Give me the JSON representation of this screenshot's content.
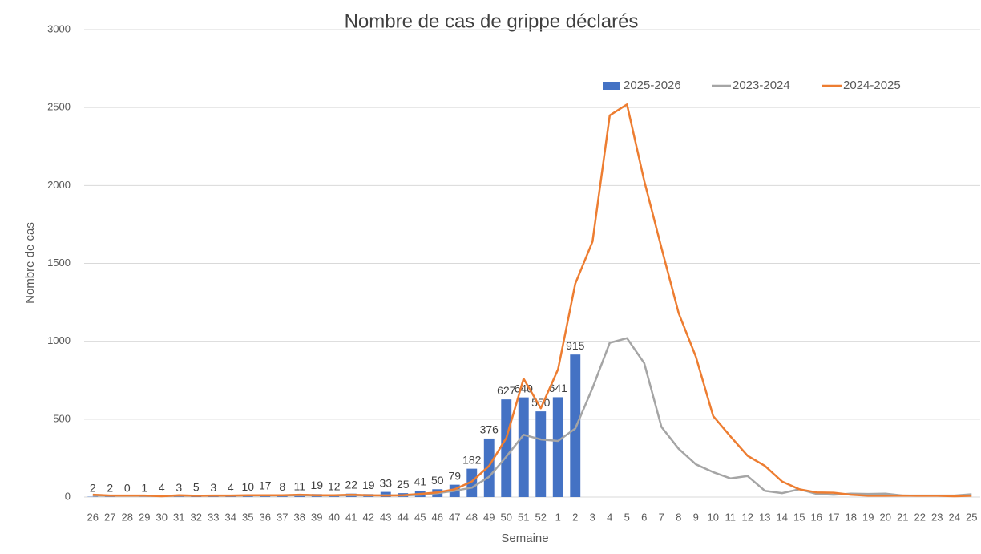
{
  "chart_data": {
    "type": "bar_line",
    "title": "Nombre de cas de grippe déclarés",
    "x_label": "Semaine",
    "y_label": "Nombre de cas",
    "categories": [
      "26",
      "27",
      "28",
      "29",
      "30",
      "31",
      "32",
      "33",
      "34",
      "35",
      "36",
      "37",
      "38",
      "39",
      "40",
      "41",
      "42",
      "43",
      "44",
      "45",
      "46",
      "47",
      "48",
      "49",
      "50",
      "51",
      "52",
      "1",
      "2",
      "3",
      "4",
      "5",
      "6",
      "7",
      "8",
      "9",
      "10",
      "11",
      "12",
      "13",
      "14",
      "15",
      "16",
      "17",
      "18",
      "19",
      "20",
      "21",
      "22",
      "23",
      "24",
      "25"
    ],
    "series": [
      {
        "name": "2025-2026",
        "type": "bar",
        "color": "#4472c4",
        "values": [
          2,
          2,
          0,
          1,
          4,
          3,
          5,
          3,
          4,
          10,
          17,
          8,
          11,
          19,
          12,
          22,
          19,
          33,
          25,
          41,
          50,
          79,
          182,
          376,
          627,
          640,
          550,
          641,
          915,
          null,
          null,
          null,
          null,
          null,
          null,
          null,
          null,
          null,
          null,
          null,
          null,
          null,
          null,
          null,
          null,
          null,
          null,
          null,
          null,
          null,
          null,
          null
        ]
      },
      {
        "name": "2023-2024",
        "type": "line",
        "color": "#a5a5a5",
        "values": [
          10,
          8,
          8,
          8,
          6,
          8,
          8,
          8,
          8,
          10,
          10,
          10,
          12,
          10,
          10,
          12,
          10,
          12,
          10,
          15,
          25,
          40,
          60,
          130,
          260,
          400,
          370,
          360,
          440,
          700,
          990,
          1020,
          860,
          450,
          310,
          210,
          160,
          120,
          135,
          40,
          25,
          50,
          20,
          15,
          22,
          20,
          22,
          10,
          10,
          10,
          10,
          18
        ]
      },
      {
        "name": "2024-2025",
        "type": "line",
        "color": "#ed7d31",
        "values": [
          15,
          10,
          10,
          10,
          5,
          12,
          8,
          10,
          10,
          12,
          12,
          12,
          15,
          12,
          12,
          15,
          12,
          10,
          12,
          20,
          30,
          50,
          100,
          200,
          380,
          760,
          570,
          820,
          1370,
          1640,
          2450,
          2520,
          2030,
          1600,
          1180,
          900,
          520,
          390,
          265,
          200,
          100,
          50,
          30,
          28,
          15,
          8,
          8,
          10,
          8,
          8,
          5,
          8
        ]
      }
    ],
    "ylim": [
      0,
      3000
    ],
    "yticks": [
      0,
      500,
      1000,
      1500,
      2000,
      2500,
      3000
    ],
    "grid": true
  }
}
